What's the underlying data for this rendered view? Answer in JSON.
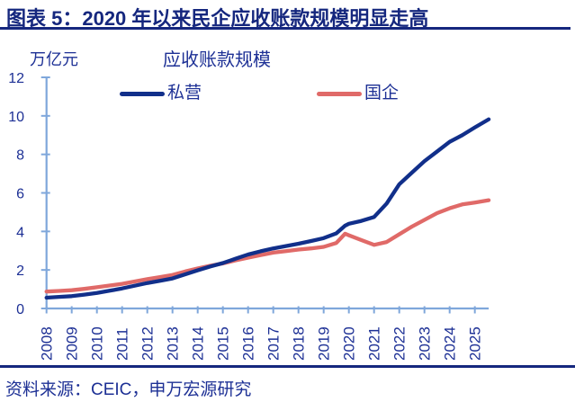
{
  "header": {
    "title": "图表 5：2020 年以来民企应收账款规模明显走高"
  },
  "chart_data": {
    "type": "line",
    "title": "应收账款规模",
    "unit_label": "万亿元",
    "ylabel": "万亿元",
    "ylim": [
      0,
      12
    ],
    "y_ticks": [
      0,
      2,
      4,
      6,
      8,
      10,
      12
    ],
    "x_ticks": [
      2008,
      2009,
      2010,
      2011,
      2012,
      2013,
      2014,
      2015,
      2016,
      2017,
      2018,
      2019,
      2020,
      2021,
      2022,
      2023,
      2024,
      2025
    ],
    "x_range": [
      2008,
      2025.55
    ],
    "grid": false,
    "legend_position": "top",
    "x": [
      2008,
      2008.5,
      2009,
      2009.5,
      2010,
      2010.5,
      2011,
      2011.5,
      2012,
      2012.5,
      2013,
      2013.5,
      2014,
      2014.5,
      2015,
      2015.5,
      2016,
      2016.5,
      2017,
      2017.5,
      2018,
      2018.5,
      2019,
      2019.5,
      2019.85,
      2020,
      2020.5,
      2021,
      2021.5,
      2022,
      2022.5,
      2023,
      2023.5,
      2024,
      2024.5,
      2025,
      2025.55
    ],
    "series": [
      {
        "key": "private",
        "name": "私营",
        "color": "#112f8a",
        "values": [
          0.56,
          0.6,
          0.64,
          0.72,
          0.81,
          0.92,
          1.04,
          1.18,
          1.32,
          1.44,
          1.56,
          1.77,
          1.98,
          2.18,
          2.36,
          2.58,
          2.8,
          2.97,
          3.12,
          3.24,
          3.36,
          3.5,
          3.65,
          3.9,
          4.3,
          4.4,
          4.55,
          4.75,
          5.45,
          6.45,
          7.05,
          7.65,
          8.15,
          8.65,
          9.0,
          9.4,
          9.82
        ]
      },
      {
        "key": "soe",
        "name": "国企",
        "color": "#e06a68",
        "values": [
          0.88,
          0.91,
          0.95,
          1.02,
          1.1,
          1.19,
          1.28,
          1.4,
          1.52,
          1.63,
          1.74,
          1.92,
          2.08,
          2.22,
          2.34,
          2.5,
          2.64,
          2.77,
          2.9,
          2.98,
          3.06,
          3.12,
          3.2,
          3.4,
          3.88,
          3.8,
          3.55,
          3.3,
          3.45,
          3.85,
          4.25,
          4.6,
          4.95,
          5.2,
          5.4,
          5.5,
          5.62
        ]
      }
    ],
    "colors": {
      "axis": "#7fa7db",
      "text": "#1d3095"
    }
  },
  "footer": {
    "source": "资料来源：CEIC，申万宏源研究"
  }
}
